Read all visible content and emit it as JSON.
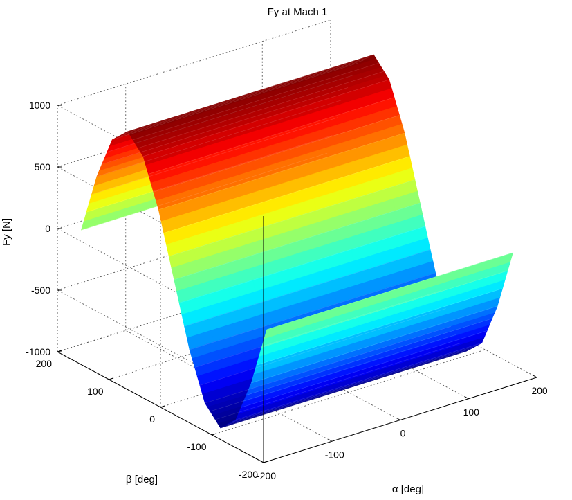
{
  "chart_data": {
    "type": "surface",
    "title": "Fy at Mach 1",
    "xlabel": "α [deg]",
    "ylabel": "β [deg]",
    "zlabel": "Fy [N]",
    "xlim": [
      -200,
      200
    ],
    "ylim": [
      -200,
      200
    ],
    "zlim": [
      -1000,
      1000
    ],
    "x_ticks": [
      "-200",
      "-100",
      "0",
      "100",
      "200"
    ],
    "y_ticks": [
      "-200",
      "-100",
      "0",
      "100",
      "200"
    ],
    "z_ticks": [
      "-1000",
      "-500",
      "0",
      "500",
      "1000"
    ],
    "grid": true,
    "colormap": "jet",
    "surface": {
      "alpha_range": [
        -180,
        180
      ],
      "beta_range": [
        -180,
        180
      ],
      "beta_profile": {
        "beta": [
          -180,
          -150,
          -120,
          -90,
          -60,
          -30,
          0,
          30,
          60,
          90,
          120,
          150,
          180
        ],
        "Fy": [
          0,
          -500,
          -866,
          -1000,
          -866,
          -500,
          0,
          500,
          866,
          1000,
          866,
          500,
          0
        ]
      }
    }
  }
}
